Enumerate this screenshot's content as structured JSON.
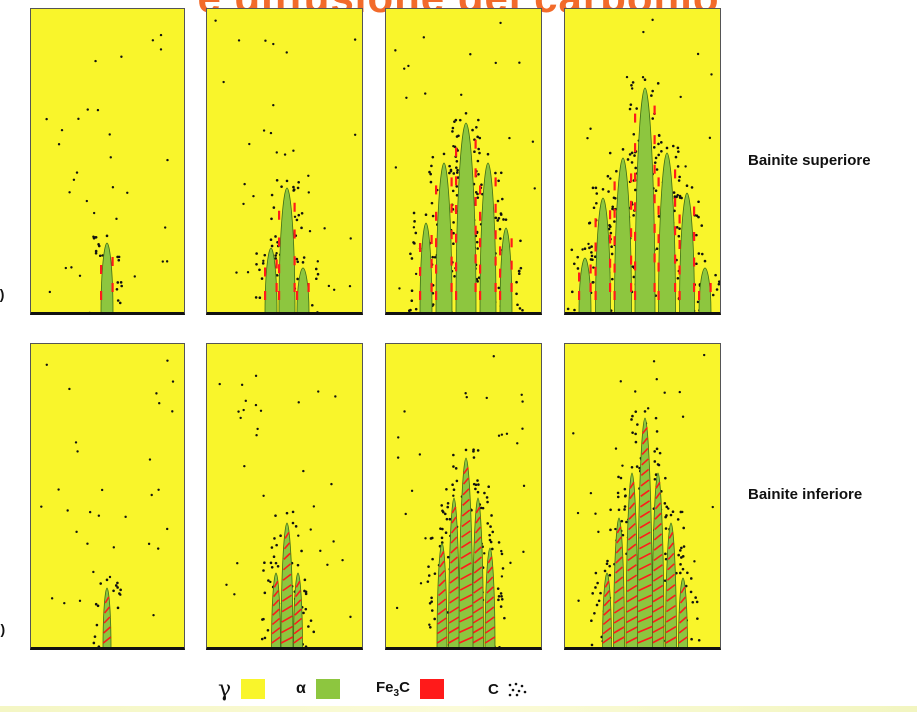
{
  "header": {
    "title": "e diffusione del carbonio"
  },
  "rows": [
    {
      "letter": "a)",
      "label": "Bainite superiore",
      "type": "upper",
      "stages": [
        1,
        2,
        3,
        4
      ]
    },
    {
      "letter": "b)",
      "label": "Bainite inferiore",
      "type": "lower",
      "stages": [
        1,
        2,
        3,
        4
      ]
    }
  ],
  "legend": {
    "items": [
      {
        "symbol": "γ",
        "color": "#f9f52b",
        "name": "gamma-swatch"
      },
      {
        "symbol": "α",
        "color": "#8dc63f",
        "name": "alpha-swatch"
      },
      {
        "symbol": "Fe",
        "sub": "3",
        "suffix": "C",
        "color": "#ff1a1a",
        "name": "cementite-swatch"
      },
      {
        "symbol": "C",
        "color": "",
        "name": "carbon-swatch"
      }
    ]
  },
  "colors": {
    "austenite": "#f9f52b",
    "ferrite": "#8dc63f",
    "cementite": "#ff1a1a",
    "carbon": "#111111",
    "title": "#f26a2a"
  }
}
